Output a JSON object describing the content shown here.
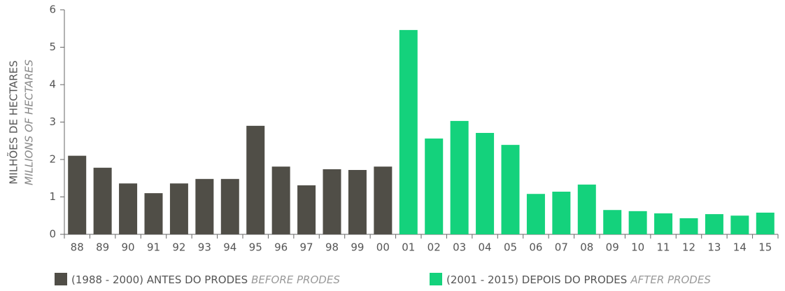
{
  "chart_data": {
    "type": "bar",
    "y_label": "MILHÕES DE HECTARES",
    "y_label_en": "MILLIONS OF HECTARES",
    "categories": [
      "88",
      "89",
      "90",
      "91",
      "92",
      "93",
      "94",
      "95",
      "96",
      "97",
      "98",
      "99",
      "00",
      "01",
      "02",
      "03",
      "04",
      "05",
      "06",
      "07",
      "08",
      "09",
      "10",
      "11",
      "12",
      "13",
      "14",
      "15"
    ],
    "series": [
      {
        "name": "(1988 - 2000) ANTES DO PRODES",
        "name_en": "BEFORE PRODES",
        "color": "#504e47",
        "values": [
          2.1,
          1.78,
          1.36,
          1.1,
          1.36,
          1.48,
          1.48,
          2.9,
          1.81,
          1.31,
          1.74,
          1.72,
          1.81,
          null,
          null,
          null,
          null,
          null,
          null,
          null,
          null,
          null,
          null,
          null,
          null,
          null,
          null,
          null
        ]
      },
      {
        "name": "(2001 - 2015) DEPOIS DO PRODES",
        "name_en": "AFTER PRODES",
        "color": "#14d27c",
        "values": [
          null,
          null,
          null,
          null,
          null,
          null,
          null,
          null,
          null,
          null,
          null,
          null,
          null,
          5.46,
          2.56,
          3.03,
          2.71,
          2.39,
          1.08,
          1.14,
          1.33,
          0.65,
          0.62,
          0.56,
          0.43,
          0.54,
          0.5,
          0.58
        ]
      }
    ],
    "ylim": [
      0,
      6
    ],
    "yticks": [
      0,
      1,
      2,
      3,
      4,
      5,
      6
    ],
    "grid": false
  }
}
